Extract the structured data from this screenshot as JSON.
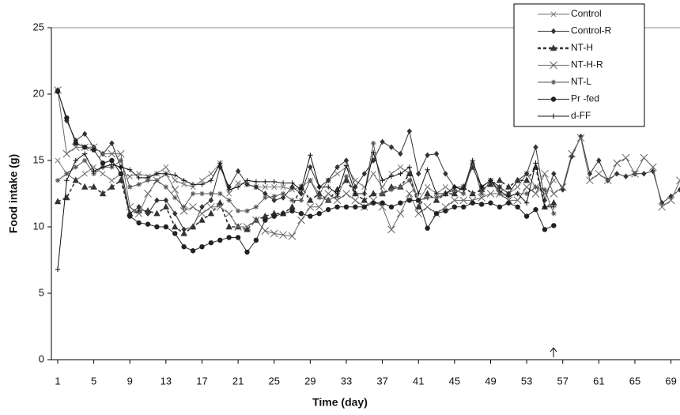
{
  "chart_data": {
    "type": "line",
    "x_label": "Time (day)",
    "y_label": "Food intake (g)",
    "x": [
      1,
      2,
      3,
      4,
      5,
      6,
      7,
      8,
      9,
      10,
      11,
      12,
      13,
      14,
      15,
      16,
      17,
      18,
      19,
      20,
      21,
      22,
      23,
      24,
      25,
      26,
      27,
      28,
      29,
      30,
      31,
      32,
      33,
      34,
      35,
      36,
      37,
      38,
      39,
      40,
      41,
      42,
      43,
      44,
      45,
      46,
      47,
      48,
      49,
      50,
      51,
      52,
      53,
      54,
      55,
      56,
      57,
      58,
      59,
      60,
      61,
      62,
      63,
      64,
      65,
      66,
      67,
      68,
      69,
      70
    ],
    "xlim": [
      0.3,
      70
    ],
    "xticks": [
      1,
      5,
      9,
      13,
      17,
      21,
      25,
      29,
      33,
      37,
      41,
      45,
      49,
      53,
      57,
      61,
      65,
      69
    ],
    "ylim": [
      0,
      25
    ],
    "yticks": [
      0,
      5,
      10,
      15,
      20,
      25
    ],
    "series": [
      {
        "name": "Control",
        "color": "#777777",
        "marker": "x",
        "values": [
          15,
          14,
          13.5,
          14,
          14.5,
          14,
          13.5,
          14,
          13.8,
          14,
          13.8,
          14,
          14.5,
          13.5,
          13.2,
          13,
          13.5,
          14,
          14.8,
          12.5,
          13.3,
          13.2,
          13,
          13,
          13,
          13,
          12.8,
          13,
          13.5,
          12.5,
          13.5,
          14,
          14.5,
          13.5,
          13,
          14,
          13,
          14,
          14.5,
          14,
          12,
          13,
          12.5,
          13,
          12.5,
          13,
          14.5,
          13,
          13.5,
          13,
          12.5,
          13,
          14,
          13,
          12.5,
          13.5,
          null,
          null,
          null,
          null,
          null,
          null,
          null,
          null,
          null,
          null,
          null,
          null,
          null,
          null
        ]
      },
      {
        "name": "Control-R",
        "color": "#333333",
        "marker": "diamond",
        "values": [
          20.3,
          18,
          16.5,
          17,
          16,
          15.5,
          16.3,
          14.5,
          11,
          11.5,
          11,
          12,
          12,
          11,
          9.8,
          10,
          11.5,
          12,
          14.5,
          13,
          14.2,
          13.2,
          13,
          12.5,
          12,
          12.2,
          13,
          12.5,
          14.5,
          13,
          13.5,
          14.5,
          15,
          13,
          14,
          15,
          16.4,
          16,
          15.5,
          17.2,
          14,
          15.4,
          15.5,
          14,
          13,
          13,
          14.5,
          13,
          13.5,
          13,
          12.5,
          13.5,
          14,
          16,
          12,
          14,
          12.8,
          15.3,
          16.8,
          14,
          15,
          13.5,
          14,
          13.8,
          14,
          14,
          14.2,
          11.8,
          12.3,
          12.8
        ]
      },
      {
        "name": "NT-H",
        "color": "#333333",
        "marker": "triangle",
        "dashed": true,
        "values": [
          11.9,
          12.2,
          13.5,
          13,
          13,
          12.5,
          13,
          13.5,
          11,
          11.2,
          11.2,
          11,
          11.5,
          10,
          9.5,
          10,
          10.5,
          11,
          11.8,
          10,
          10,
          9.8,
          10.5,
          10.8,
          11,
          11,
          11.5,
          13,
          12,
          12.5,
          12,
          12.8,
          13.5,
          12.5,
          12,
          12.5,
          12.5,
          13,
          13,
          14,
          11.5,
          12.5,
          12,
          12.5,
          12.5,
          13,
          12.5,
          12.8,
          13.2,
          13.5,
          13,
          13.5,
          13.5,
          14.5,
          11.5,
          11.8,
          null,
          null,
          null,
          null,
          null,
          null,
          null,
          null,
          null,
          null,
          null,
          null,
          null,
          null
        ]
      },
      {
        "name": "NT-H-R",
        "color": "#666666",
        "marker": "x",
        "values": [
          20.3,
          15.5,
          16,
          16,
          16,
          15.5,
          15.5,
          15.5,
          11.5,
          11,
          12.5,
          13.5,
          14,
          12.8,
          11.2,
          11.5,
          11,
          11.5,
          11.5,
          11,
          10,
          10,
          10.5,
          9.7,
          9.5,
          9.4,
          9.3,
          10.5,
          11.5,
          11.5,
          12.5,
          12,
          12.5,
          12,
          11.5,
          12,
          11.5,
          9.8,
          11,
          12.5,
          11,
          11.5,
          11,
          11.5,
          12,
          12,
          12,
          12.2,
          12.5,
          12.5,
          12,
          12,
          13,
          12.5,
          14,
          12.5,
          13,
          15.5,
          16.7,
          13.5,
          14,
          13.5,
          14.8,
          15.2,
          14,
          15.2,
          14.5,
          11.5,
          12,
          13.5
        ]
      },
      {
        "name": "NT-L",
        "color": "#555555",
        "marker": "asterisk",
        "values": [
          13.5,
          14,
          14.5,
          15,
          14,
          14.5,
          14.5,
          15,
          13,
          13.2,
          13.5,
          13.5,
          13,
          12.2,
          11.5,
          12.5,
          12.5,
          12.5,
          12.5,
          12,
          11.2,
          11.2,
          11.5,
          12.2,
          12.3,
          12.5,
          12,
          12,
          13.5,
          12.2,
          12,
          12.3,
          13.8,
          12.5,
          12.5,
          16.3,
          12.5,
          12.8,
          13,
          13.5,
          12,
          12.2,
          12.2,
          12.5,
          12.8,
          12.5,
          14.8,
          12.5,
          13.5,
          12.5,
          12.3,
          12.5,
          12.5,
          13,
          12.8,
          11,
          null,
          null,
          null,
          null,
          null,
          null,
          null,
          null,
          null,
          null,
          null,
          null,
          null,
          null
        ]
      },
      {
        "name": "Pr -fed",
        "color": "#222222",
        "marker": "circle",
        "values": [
          20.2,
          18.2,
          16.3,
          16,
          15.8,
          14.8,
          15,
          14,
          10.8,
          10.3,
          10.2,
          10,
          10,
          9.5,
          8.5,
          8.2,
          8.5,
          8.8,
          9,
          9.2,
          9.2,
          8.1,
          9,
          10.5,
          10.8,
          11,
          11.2,
          11,
          10.8,
          11,
          11.3,
          11.5,
          11.5,
          11.5,
          11.5,
          11.8,
          11.8,
          11.5,
          11.8,
          12,
          12,
          9.9,
          11,
          11.2,
          11.5,
          11.5,
          11.8,
          11.7,
          11.8,
          11.5,
          11.8,
          11.5,
          10.8,
          11.3,
          9.8,
          10.1,
          null,
          null,
          null,
          null,
          null,
          null,
          null,
          null,
          null,
          null,
          null,
          null,
          null,
          null
        ]
      },
      {
        "name": "d-FF",
        "color": "#111111",
        "marker": "plus",
        "values": [
          6.8,
          13.5,
          15,
          15.5,
          14.2,
          14.5,
          14.7,
          14.5,
          14.3,
          13.7,
          13.7,
          14,
          14,
          13.9,
          13.5,
          13.2,
          13.2,
          13.5,
          14.8,
          12.8,
          13,
          13.5,
          13.4,
          13.4,
          13.4,
          13.3,
          13.3,
          12.8,
          15.4,
          13,
          13,
          12.5,
          14.6,
          12.5,
          12.5,
          15.6,
          13.5,
          13.8,
          14,
          14.5,
          12.5,
          14.3,
          12.5,
          12.5,
          13,
          12.8,
          15,
          13,
          13.5,
          12.7,
          12.3,
          12.5,
          11.8,
          14.8,
          11.5,
          11.5,
          null,
          null,
          null,
          null,
          null,
          null,
          null,
          null,
          null,
          null,
          null,
          null,
          null,
          null
        ]
      }
    ]
  }
}
